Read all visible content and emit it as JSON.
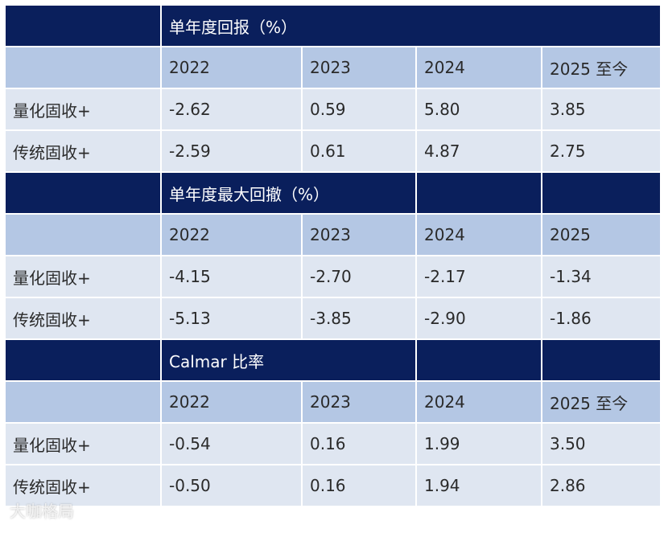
{
  "sections": [
    {
      "title": "单年度回报（%）",
      "years": [
        "2022",
        "2023",
        "2024",
        "2025 至今"
      ],
      "rows": [
        {
          "label": "量化固收+",
          "values": [
            "-2.62",
            "0.59",
            "5.80",
            "3.85"
          ]
        },
        {
          "label": "传统固收+",
          "values": [
            "-2.59",
            "0.61",
            "4.87",
            "2.75"
          ]
        }
      ]
    },
    {
      "title": "单年度最大回撤（%）",
      "years": [
        "2022",
        "2023",
        "2024",
        "2025"
      ],
      "rows": [
        {
          "label": "量化固收+",
          "values": [
            "-4.15",
            "-2.70",
            "-2.17",
            "-1.34"
          ]
        },
        {
          "label": "传统固收+",
          "values": [
            "-5.13",
            "-3.85",
            "-2.90",
            "-1.86"
          ]
        }
      ]
    },
    {
      "title": "Calmar 比率",
      "years": [
        "2022",
        "2023",
        "2024",
        "2025 至今"
      ],
      "rows": [
        {
          "label": "量化固收+",
          "values": [
            "-0.54",
            "0.16",
            "1.99",
            "3.50"
          ]
        },
        {
          "label": "传统固收+",
          "values": [
            "-0.50",
            "0.16",
            "1.94",
            "2.86"
          ]
        }
      ]
    }
  ],
  "watermark": "大咖格局",
  "colors": {
    "header_bg": "#0a1f5c",
    "year_bg": "#b4c7e4",
    "row_bg": "#dfe6f1"
  }
}
